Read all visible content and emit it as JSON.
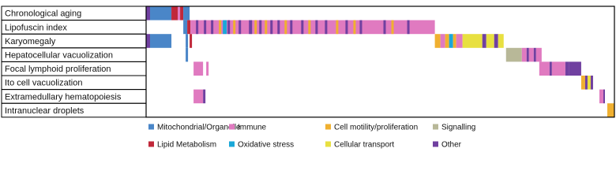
{
  "chart_data": {
    "type": "heatmap",
    "rows": [
      "Chronological aging",
      "Lipofuscin index",
      "Karyomegaly",
      "Hepatocellular vacuolization",
      "Focal lymphoid proliferation",
      "Ito cell vacuolization",
      "Extramedullary hematopoiesis",
      "Intranuclear droplets"
    ],
    "legend": [
      {
        "name": "Mitochondrial/Organelle",
        "color": "#4a86c8"
      },
      {
        "name": "Immune",
        "color": "#e07ac0"
      },
      {
        "name": "Cell motility/proliferation",
        "color": "#f0b030"
      },
      {
        "name": "Signalling",
        "color": "#b8b898"
      },
      {
        "name": "Lipid Metabolism",
        "color": "#c0283a"
      },
      {
        "name": "Oxidative stress",
        "color": "#1aa8d8"
      },
      {
        "name": "Cellular transport",
        "color": "#e8e040"
      },
      {
        "name": "Other",
        "color": "#7040a0"
      }
    ],
    "xlim": [
      0,
      592
    ],
    "segments": [
      [
        [
          0,
          5,
          7
        ],
        [
          5,
          32,
          0
        ],
        [
          32,
          40,
          4
        ],
        [
          40,
          43,
          1
        ],
        [
          43,
          47,
          4
        ],
        [
          47,
          55,
          0
        ]
      ],
      [
        [
          47,
          52,
          0
        ],
        [
          52,
          56,
          4
        ],
        [
          56,
          365,
          1
        ],
        [
          63,
          66,
          7
        ],
        [
          73,
          76,
          7
        ],
        [
          82,
          85,
          7
        ],
        [
          92,
          95,
          2
        ],
        [
          97,
          102,
          5
        ],
        [
          103,
          106,
          7
        ],
        [
          110,
          113,
          2
        ],
        [
          117,
          120,
          7
        ],
        [
          130,
          134,
          7
        ],
        [
          137,
          140,
          2
        ],
        [
          143,
          146,
          7
        ],
        [
          150,
          153,
          2
        ],
        [
          157,
          160,
          7
        ],
        [
          166,
          169,
          7
        ],
        [
          175,
          178,
          2
        ],
        [
          182,
          185,
          7
        ],
        [
          196,
          199,
          7
        ],
        [
          205,
          208,
          2
        ],
        [
          214,
          217,
          7
        ],
        [
          226,
          229,
          7
        ],
        [
          240,
          243,
          2
        ],
        [
          252,
          255,
          7
        ],
        [
          262,
          265,
          2
        ],
        [
          270,
          273,
          7
        ],
        [
          300,
          303,
          7
        ],
        [
          310,
          313,
          2
        ],
        [
          330,
          333,
          7
        ]
      ],
      [
        [
          0,
          5,
          7
        ],
        [
          5,
          32,
          0
        ],
        [
          50,
          53,
          0
        ],
        [
          55,
          58,
          4
        ],
        [
          365,
          372,
          2
        ],
        [
          372,
          378,
          1
        ],
        [
          378,
          383,
          2
        ],
        [
          383,
          388,
          5
        ],
        [
          388,
          392,
          2
        ],
        [
          392,
          400,
          1
        ],
        [
          400,
          425,
          6
        ],
        [
          425,
          430,
          7
        ],
        [
          430,
          440,
          6
        ],
        [
          440,
          445,
          7
        ],
        [
          445,
          452,
          6
        ]
      ],
      [
        [
          50,
          53,
          0
        ],
        [
          455,
          475,
          3
        ],
        [
          475,
          481,
          1
        ],
        [
          481,
          484,
          7
        ],
        [
          484,
          490,
          1
        ],
        [
          490,
          493,
          7
        ],
        [
          493,
          500,
          1
        ]
      ],
      [
        [
          60,
          72,
          1
        ],
        [
          76,
          79,
          1
        ],
        [
          497,
          510,
          1
        ],
        [
          510,
          513,
          7
        ],
        [
          513,
          530,
          1
        ],
        [
          530,
          535,
          7
        ],
        [
          535,
          550,
          7
        ]
      ],
      [
        [
          550,
          555,
          2
        ],
        [
          555,
          558,
          7
        ],
        [
          558,
          562,
          6
        ],
        [
          562,
          565,
          7
        ]
      ],
      [
        [
          60,
          72,
          1
        ],
        [
          72,
          75,
          7
        ],
        [
          573,
          578,
          1
        ],
        [
          578,
          580,
          7
        ]
      ],
      [
        [
          583,
          592,
          2
        ]
      ]
    ]
  }
}
